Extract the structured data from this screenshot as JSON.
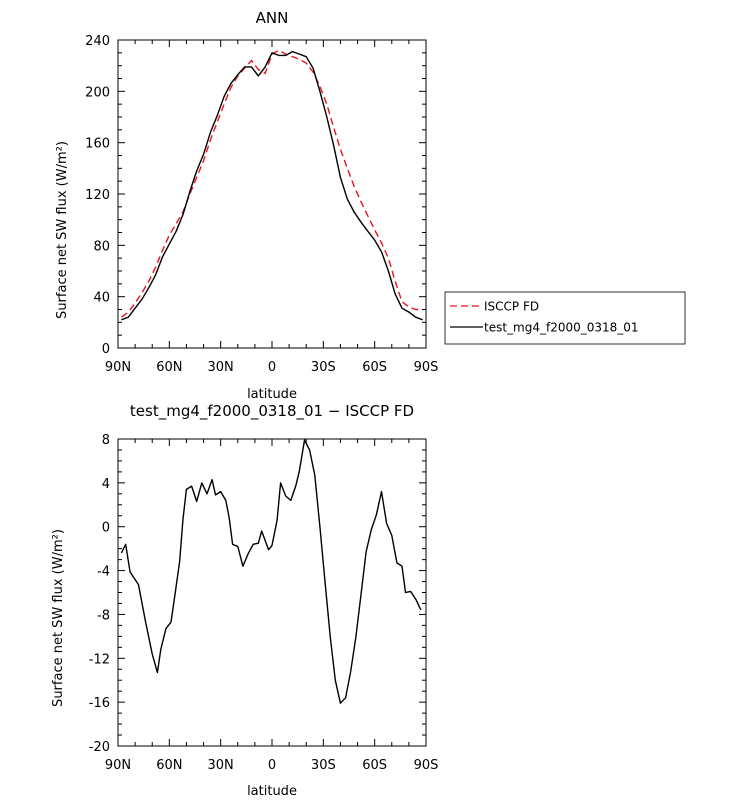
{
  "chart_data": [
    {
      "type": "line",
      "title": "ANN",
      "xlabel": "latitude",
      "ylabel": "Surface net SW flux (W/m²)",
      "xlim": [
        90,
        -90
      ],
      "ylim": [
        0,
        240
      ],
      "x_ticks": [
        {
          "value": 90,
          "label": "90N"
        },
        {
          "value": 60,
          "label": "60N"
        },
        {
          "value": 30,
          "label": "30N"
        },
        {
          "value": 0,
          "label": "0"
        },
        {
          "value": -30,
          "label": "30S"
        },
        {
          "value": -60,
          "label": "60S"
        },
        {
          "value": -90,
          "label": "90S"
        }
      ],
      "y_ticks": [
        0,
        40,
        80,
        120,
        160,
        200,
        240
      ],
      "legend_position": "right",
      "series": [
        {
          "name": "ISCCP FD",
          "color": "#e8141e",
          "dash": "dashed",
          "x": [
            88,
            84,
            80,
            76,
            72,
            68,
            64,
            60,
            56,
            52,
            48,
            44,
            40,
            36,
            32,
            28,
            24,
            20,
            16,
            12,
            8,
            4,
            0,
            -4,
            -8,
            -12,
            -16,
            -20,
            -24,
            -28,
            -32,
            -36,
            -40,
            -44,
            -48,
            -52,
            -56,
            -60,
            -64,
            -68,
            -72,
            -76,
            -80,
            -84,
            -88
          ],
          "y": [
            24,
            28,
            35,
            43,
            52,
            63,
            76,
            88,
            97,
            106,
            120,
            133,
            146,
            162,
            176,
            190,
            203,
            212,
            218,
            224,
            217,
            214,
            229,
            232,
            229,
            227,
            225,
            222,
            215,
            204,
            190,
            172,
            155,
            140,
            126,
            114,
            103,
            92,
            82,
            70,
            52,
            36,
            32,
            30,
            30
          ]
        },
        {
          "name": "test_mg4_f2000_0318_01",
          "color": "#000000",
          "dash": "solid",
          "x": [
            88,
            84,
            80,
            76,
            72,
            68,
            64,
            60,
            56,
            52,
            48,
            44,
            40,
            36,
            32,
            28,
            24,
            20,
            16,
            12,
            8,
            4,
            0,
            -4,
            -8,
            -12,
            -16,
            -20,
            -24,
            -28,
            -32,
            -36,
            -40,
            -44,
            -48,
            -52,
            -56,
            -60,
            -64,
            -68,
            -72,
            -76,
            -80,
            -84,
            -88
          ],
          "y": [
            22,
            24,
            31,
            38,
            47,
            57,
            71,
            81,
            91,
            104,
            122,
            138,
            151,
            168,
            181,
            196,
            206,
            213,
            219,
            219,
            212,
            219,
            230,
            228,
            228,
            231,
            229,
            227,
            218,
            200,
            180,
            158,
            133,
            116,
            106,
            98,
            91,
            84,
            75,
            60,
            42,
            31,
            28,
            24,
            22
          ]
        }
      ]
    },
    {
      "type": "line",
      "title": "test_mg4_f2000_0318_01 − ISCCP FD",
      "xlabel": "latitude",
      "ylabel": "Surface net SW flux (W/m²)",
      "xlim": [
        90,
        -90
      ],
      "ylim": [
        -20,
        8
      ],
      "x_ticks": [
        {
          "value": 90,
          "label": "90N"
        },
        {
          "value": 60,
          "label": "60N"
        },
        {
          "value": 30,
          "label": "30N"
        },
        {
          "value": 0,
          "label": "0"
        },
        {
          "value": -30,
          "label": "30S"
        },
        {
          "value": -60,
          "label": "60S"
        },
        {
          "value": -90,
          "label": "90S"
        }
      ],
      "y_ticks": [
        -20,
        -16,
        -12,
        -8,
        -4,
        0,
        4,
        8
      ],
      "series": [
        {
          "color": "#000000",
          "dash": "solid",
          "x": [
            88,
            85.5,
            83,
            78,
            74,
            70,
            67,
            65,
            62,
            59,
            57,
            54,
            52,
            50,
            47,
            44,
            41,
            38,
            35,
            33,
            30,
            27,
            25,
            23,
            20,
            17,
            14,
            11,
            8,
            6,
            2,
            0,
            -3,
            -5,
            -8,
            -11,
            -14,
            -16,
            -19,
            -22,
            -25,
            -28,
            -31,
            -34,
            -37,
            -40,
            -43,
            -46,
            -49,
            -52,
            -55,
            -58,
            -61,
            -64,
            -67,
            -70,
            -73,
            -76,
            -78,
            -81,
            -84,
            -87
          ],
          "y": [
            -2.4,
            -1.6,
            -4.1,
            -5.3,
            -8.6,
            -11.6,
            -13.3,
            -11.2,
            -9.3,
            -8.7,
            -6.5,
            -3.2,
            0.7,
            3.4,
            3.7,
            2.3,
            4.0,
            3.0,
            4.3,
            2.9,
            3.2,
            2.4,
            0.8,
            -1.6,
            -1.8,
            -3.6,
            -2.5,
            -1.6,
            -1.5,
            -0.4,
            -2.1,
            -1.7,
            0.6,
            4.0,
            2.8,
            2.4,
            3.8,
            5.1,
            7.9,
            7.0,
            4.7,
            0.0,
            -5.0,
            -10.0,
            -14.0,
            -16.1,
            -15.6,
            -13.2,
            -10.1,
            -6.2,
            -2.3,
            -0.3,
            1.1,
            3.2,
            0.3,
            -0.8,
            -3.3,
            -3.6,
            -6.0,
            -5.9,
            -6.6,
            -7.6
          ]
        }
      ]
    }
  ]
}
